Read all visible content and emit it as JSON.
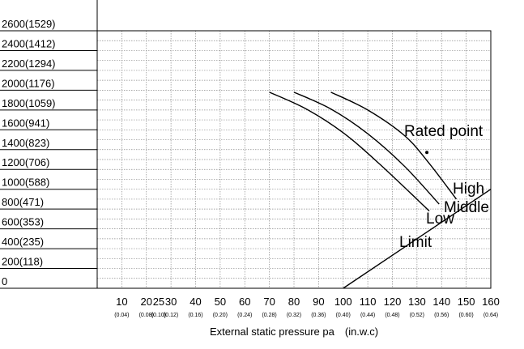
{
  "chart_data": {
    "type": "line",
    "title": "",
    "xlabel": "External static pressure pa　(in.w.c)",
    "ylabel": "",
    "xlim": [
      0,
      160
    ],
    "ylim": [
      0,
      2600
    ],
    "grid": true,
    "x_ticks": [
      {
        "value": 10,
        "label": "10",
        "sub": "(0.04)"
      },
      {
        "value": 20,
        "label": "20",
        "sub": "(0.08)"
      },
      {
        "value": 25,
        "label": "25",
        "sub": "(0.10)"
      },
      {
        "value": 30,
        "label": "30",
        "sub": "(0.12)"
      },
      {
        "value": 40,
        "label": "40",
        "sub": "(0.16)"
      },
      {
        "value": 50,
        "label": "50",
        "sub": "(0.20)"
      },
      {
        "value": 60,
        "label": "60",
        "sub": "(0.24)"
      },
      {
        "value": 70,
        "label": "70",
        "sub": "(0.28)"
      },
      {
        "value": 80,
        "label": "80",
        "sub": "(0.32)"
      },
      {
        "value": 90,
        "label": "90",
        "sub": "(0.36)"
      },
      {
        "value": 100,
        "label": "100",
        "sub": "(0.40)"
      },
      {
        "value": 110,
        "label": "110",
        "sub": "(0.44)"
      },
      {
        "value": 120,
        "label": "120",
        "sub": "(0.48)"
      },
      {
        "value": 130,
        "label": "130",
        "sub": "(0.52)"
      },
      {
        "value": 140,
        "label": "140",
        "sub": "(0.56)"
      },
      {
        "value": 150,
        "label": "150",
        "sub": "(0.60)"
      },
      {
        "value": 160,
        "label": "160",
        "sub": "(0.64)"
      }
    ],
    "y_ticks": [
      {
        "value": 0,
        "label": "0"
      },
      {
        "value": 200,
        "label": "200(118)"
      },
      {
        "value": 400,
        "label": "400(235)"
      },
      {
        "value": 600,
        "label": "600(353)"
      },
      {
        "value": 800,
        "label": "800(471)"
      },
      {
        "value": 1000,
        "label": "1000(588)"
      },
      {
        "value": 1200,
        "label": "1200(706)"
      },
      {
        "value": 1400,
        "label": "1400(823)"
      },
      {
        "value": 1600,
        "label": "1600(941)"
      },
      {
        "value": 1800,
        "label": "1800(1059)"
      },
      {
        "value": 2000,
        "label": "2000(1176)"
      },
      {
        "value": 2200,
        "label": "2200(1294)"
      },
      {
        "value": 2400,
        "label": "2400(1412)"
      },
      {
        "value": 2600,
        "label": "2600(1529)"
      }
    ],
    "series": [
      {
        "name": "High",
        "points": [
          [
            95,
            1980
          ],
          [
            110,
            1800
          ],
          [
            125,
            1540
          ],
          [
            135,
            1260
          ],
          [
            146,
            900
          ]
        ]
      },
      {
        "name": "Middle",
        "points": [
          [
            80,
            1980
          ],
          [
            95,
            1810
          ],
          [
            110,
            1560
          ],
          [
            125,
            1230
          ],
          [
            139,
            850
          ]
        ]
      },
      {
        "name": "Low",
        "points": [
          [
            70,
            1980
          ],
          [
            85,
            1810
          ],
          [
            100,
            1570
          ],
          [
            115,
            1250
          ],
          [
            135,
            780
          ]
        ]
      },
      {
        "name": "Limit",
        "points": [
          [
            100,
            0
          ],
          [
            160,
            1000
          ]
        ]
      }
    ],
    "annotations": [
      {
        "text": "Rated point",
        "x": 135,
        "y": 1380
      }
    ]
  }
}
